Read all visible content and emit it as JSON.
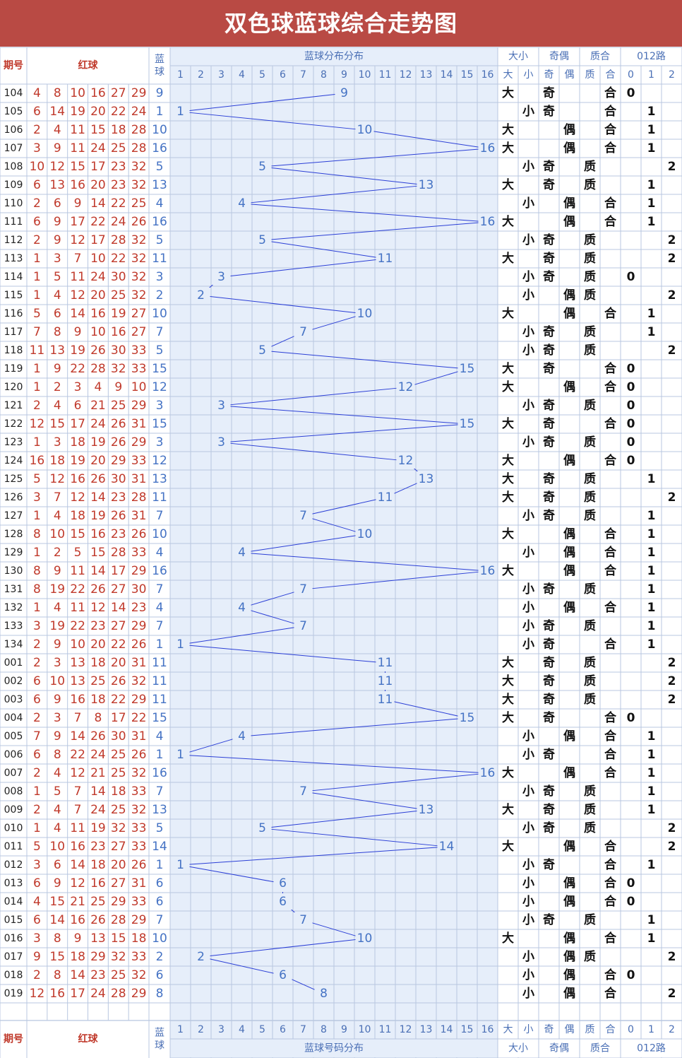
{
  "title": "双色球蓝球综合走势图",
  "header_labels": {
    "issue": "期号",
    "red": "红球",
    "blue_top": "蓝",
    "blue_bottom": "球",
    "dist_top": "蓝球分布分布",
    "dist_bottom": "蓝球号码分布",
    "daxiao": "大小",
    "jiou": "奇偶",
    "zhihe": "质合",
    "road": "012路"
  },
  "sub_labels": {
    "da": "大",
    "xiao": "小",
    "ji": "奇",
    "ou": "偶",
    "zhi": "质",
    "he": "合",
    "r0": "0",
    "r1": "1",
    "r2": "2"
  },
  "colors": {
    "title_bg": "#b94a44",
    "red_ball": "#c0392b",
    "blue_ball": "#4472c4",
    "trend_line": "#2b3fd6",
    "header_text": "#4a6fb5",
    "grid_bg": "#e6eefa",
    "grid_line": "#b8c7e0",
    "stat_text": "#111111"
  },
  "chart_data": {
    "type": "line",
    "title": "双色球蓝球综合走势图",
    "x_label": "蓝球分布分布",
    "blue_range": [
      1,
      16
    ],
    "rows": [
      {
        "issue": "104",
        "red": [
          4,
          8,
          10,
          16,
          27,
          29
        ],
        "blue": 9,
        "dx": "大",
        "jo": "奇",
        "zh": "合",
        "road": 0
      },
      {
        "issue": "105",
        "red": [
          6,
          14,
          19,
          20,
          22,
          24
        ],
        "blue": 1,
        "dx": "小",
        "jo": "奇",
        "zh": "合",
        "road": 1
      },
      {
        "issue": "106",
        "red": [
          2,
          4,
          11,
          15,
          18,
          28
        ],
        "blue": 10,
        "dx": "大",
        "jo": "偶",
        "zh": "合",
        "road": 1
      },
      {
        "issue": "107",
        "red": [
          3,
          9,
          11,
          24,
          25,
          28
        ],
        "blue": 16,
        "dx": "大",
        "jo": "偶",
        "zh": "合",
        "road": 1
      },
      {
        "issue": "108",
        "red": [
          10,
          12,
          15,
          17,
          23,
          32
        ],
        "blue": 5,
        "dx": "小",
        "jo": "奇",
        "zh": "质",
        "road": 2
      },
      {
        "issue": "109",
        "red": [
          6,
          13,
          16,
          20,
          23,
          32
        ],
        "blue": 13,
        "dx": "大",
        "jo": "奇",
        "zh": "质",
        "road": 1
      },
      {
        "issue": "110",
        "red": [
          2,
          6,
          9,
          14,
          22,
          25
        ],
        "blue": 4,
        "dx": "小",
        "jo": "偶",
        "zh": "合",
        "road": 1
      },
      {
        "issue": "111",
        "red": [
          6,
          9,
          17,
          22,
          24,
          26
        ],
        "blue": 16,
        "dx": "大",
        "jo": "偶",
        "zh": "合",
        "road": 1
      },
      {
        "issue": "112",
        "red": [
          2,
          9,
          12,
          17,
          28,
          32
        ],
        "blue": 5,
        "dx": "小",
        "jo": "奇",
        "zh": "质",
        "road": 2
      },
      {
        "issue": "113",
        "red": [
          1,
          3,
          7,
          10,
          22,
          32
        ],
        "blue": 11,
        "dx": "大",
        "jo": "奇",
        "zh": "质",
        "road": 2
      },
      {
        "issue": "114",
        "red": [
          1,
          5,
          11,
          24,
          30,
          32
        ],
        "blue": 3,
        "dx": "小",
        "jo": "奇",
        "zh": "质",
        "road": 0
      },
      {
        "issue": "115",
        "red": [
          1,
          4,
          12,
          20,
          25,
          32
        ],
        "blue": 2,
        "dx": "小",
        "jo": "偶",
        "zh": "质",
        "road": 2
      },
      {
        "issue": "116",
        "red": [
          5,
          6,
          14,
          16,
          19,
          27
        ],
        "blue": 10,
        "dx": "大",
        "jo": "偶",
        "zh": "合",
        "road": 1
      },
      {
        "issue": "117",
        "red": [
          7,
          8,
          9,
          10,
          16,
          27
        ],
        "blue": 7,
        "dx": "小",
        "jo": "奇",
        "zh": "质",
        "road": 1
      },
      {
        "issue": "118",
        "red": [
          11,
          13,
          19,
          26,
          30,
          33
        ],
        "blue": 5,
        "dx": "小",
        "jo": "奇",
        "zh": "质",
        "road": 2
      },
      {
        "issue": "119",
        "red": [
          1,
          9,
          22,
          28,
          32,
          33
        ],
        "blue": 15,
        "dx": "大",
        "jo": "奇",
        "zh": "合",
        "road": 0
      },
      {
        "issue": "120",
        "red": [
          1,
          2,
          3,
          4,
          9,
          10
        ],
        "blue": 12,
        "dx": "大",
        "jo": "偶",
        "zh": "合",
        "road": 0
      },
      {
        "issue": "121",
        "red": [
          2,
          4,
          6,
          21,
          25,
          29
        ],
        "blue": 3,
        "dx": "小",
        "jo": "奇",
        "zh": "质",
        "road": 0
      },
      {
        "issue": "122",
        "red": [
          12,
          15,
          17,
          24,
          26,
          31
        ],
        "blue": 15,
        "dx": "大",
        "jo": "奇",
        "zh": "合",
        "road": 0
      },
      {
        "issue": "123",
        "red": [
          1,
          3,
          18,
          19,
          26,
          29
        ],
        "blue": 3,
        "dx": "小",
        "jo": "奇",
        "zh": "质",
        "road": 0
      },
      {
        "issue": "124",
        "red": [
          16,
          18,
          19,
          20,
          29,
          33
        ],
        "blue": 12,
        "dx": "大",
        "jo": "偶",
        "zh": "合",
        "road": 0
      },
      {
        "issue": "125",
        "red": [
          5,
          12,
          16,
          26,
          30,
          31
        ],
        "blue": 13,
        "dx": "大",
        "jo": "奇",
        "zh": "质",
        "road": 1
      },
      {
        "issue": "126",
        "red": [
          3,
          7,
          12,
          14,
          23,
          28
        ],
        "blue": 11,
        "dx": "大",
        "jo": "奇",
        "zh": "质",
        "road": 2
      },
      {
        "issue": "127",
        "red": [
          1,
          4,
          18,
          19,
          26,
          31
        ],
        "blue": 7,
        "dx": "小",
        "jo": "奇",
        "zh": "质",
        "road": 1
      },
      {
        "issue": "128",
        "red": [
          8,
          10,
          15,
          16,
          23,
          26
        ],
        "blue": 10,
        "dx": "大",
        "jo": "偶",
        "zh": "合",
        "road": 1
      },
      {
        "issue": "129",
        "red": [
          1,
          2,
          5,
          15,
          28,
          33
        ],
        "blue": 4,
        "dx": "小",
        "jo": "偶",
        "zh": "合",
        "road": 1
      },
      {
        "issue": "130",
        "red": [
          8,
          9,
          11,
          14,
          17,
          29
        ],
        "blue": 16,
        "dx": "大",
        "jo": "偶",
        "zh": "合",
        "road": 1
      },
      {
        "issue": "131",
        "red": [
          8,
          19,
          22,
          26,
          27,
          30
        ],
        "blue": 7,
        "dx": "小",
        "jo": "奇",
        "zh": "质",
        "road": 1
      },
      {
        "issue": "132",
        "red": [
          1,
          4,
          11,
          12,
          14,
          23
        ],
        "blue": 4,
        "dx": "小",
        "jo": "偶",
        "zh": "合",
        "road": 1
      },
      {
        "issue": "133",
        "red": [
          3,
          19,
          22,
          23,
          27,
          29
        ],
        "blue": 7,
        "dx": "小",
        "jo": "奇",
        "zh": "质",
        "road": 1
      },
      {
        "issue": "134",
        "red": [
          2,
          9,
          10,
          20,
          22,
          26
        ],
        "blue": 1,
        "dx": "小",
        "jo": "奇",
        "zh": "合",
        "road": 1
      },
      {
        "issue": "001",
        "red": [
          2,
          3,
          13,
          18,
          20,
          31
        ],
        "blue": 11,
        "dx": "大",
        "jo": "奇",
        "zh": "质",
        "road": 2
      },
      {
        "issue": "002",
        "red": [
          6,
          10,
          13,
          25,
          26,
          32
        ],
        "blue": 11,
        "dx": "大",
        "jo": "奇",
        "zh": "质",
        "road": 2
      },
      {
        "issue": "003",
        "red": [
          6,
          9,
          16,
          18,
          22,
          29
        ],
        "blue": 11,
        "dx": "大",
        "jo": "奇",
        "zh": "质",
        "road": 2
      },
      {
        "issue": "004",
        "red": [
          2,
          3,
          7,
          8,
          17,
          22
        ],
        "blue": 15,
        "dx": "大",
        "jo": "奇",
        "zh": "合",
        "road": 0
      },
      {
        "issue": "005",
        "red": [
          7,
          9,
          14,
          26,
          30,
          31
        ],
        "blue": 4,
        "dx": "小",
        "jo": "偶",
        "zh": "合",
        "road": 1
      },
      {
        "issue": "006",
        "red": [
          6,
          8,
          22,
          24,
          25,
          26
        ],
        "blue": 1,
        "dx": "小",
        "jo": "奇",
        "zh": "合",
        "road": 1
      },
      {
        "issue": "007",
        "red": [
          2,
          4,
          12,
          21,
          25,
          32
        ],
        "blue": 16,
        "dx": "大",
        "jo": "偶",
        "zh": "合",
        "road": 1
      },
      {
        "issue": "008",
        "red": [
          1,
          5,
          7,
          14,
          18,
          33
        ],
        "blue": 7,
        "dx": "小",
        "jo": "奇",
        "zh": "质",
        "road": 1
      },
      {
        "issue": "009",
        "red": [
          2,
          4,
          7,
          24,
          25,
          32
        ],
        "blue": 13,
        "dx": "大",
        "jo": "奇",
        "zh": "质",
        "road": 1
      },
      {
        "issue": "010",
        "red": [
          1,
          4,
          11,
          19,
          32,
          33
        ],
        "blue": 5,
        "dx": "小",
        "jo": "奇",
        "zh": "质",
        "road": 2
      },
      {
        "issue": "011",
        "red": [
          5,
          10,
          16,
          23,
          27,
          33
        ],
        "blue": 14,
        "dx": "大",
        "jo": "偶",
        "zh": "合",
        "road": 2
      },
      {
        "issue": "012",
        "red": [
          3,
          6,
          14,
          18,
          20,
          26
        ],
        "blue": 1,
        "dx": "小",
        "jo": "奇",
        "zh": "合",
        "road": 1
      },
      {
        "issue": "013",
        "red": [
          6,
          9,
          12,
          16,
          27,
          31
        ],
        "blue": 6,
        "dx": "小",
        "jo": "偶",
        "zh": "合",
        "road": 0
      },
      {
        "issue": "014",
        "red": [
          4,
          15,
          21,
          25,
          29,
          33
        ],
        "blue": 6,
        "dx": "小",
        "jo": "偶",
        "zh": "合",
        "road": 0
      },
      {
        "issue": "015",
        "red": [
          6,
          14,
          16,
          26,
          28,
          29
        ],
        "blue": 7,
        "dx": "小",
        "jo": "奇",
        "zh": "质",
        "road": 1
      },
      {
        "issue": "016",
        "red": [
          3,
          8,
          9,
          13,
          15,
          18
        ],
        "blue": 10,
        "dx": "大",
        "jo": "偶",
        "zh": "合",
        "road": 1
      },
      {
        "issue": "017",
        "red": [
          9,
          15,
          18,
          29,
          32,
          33
        ],
        "blue": 2,
        "dx": "小",
        "jo": "偶",
        "zh": "质",
        "road": 2
      },
      {
        "issue": "018",
        "red": [
          2,
          8,
          14,
          23,
          25,
          32
        ],
        "blue": 6,
        "dx": "小",
        "jo": "偶",
        "zh": "合",
        "road": 0
      },
      {
        "issue": "019",
        "red": [
          12,
          16,
          17,
          24,
          28,
          29
        ],
        "blue": 8,
        "dx": "小",
        "jo": "偶",
        "zh": "合",
        "road": 2
      }
    ]
  }
}
